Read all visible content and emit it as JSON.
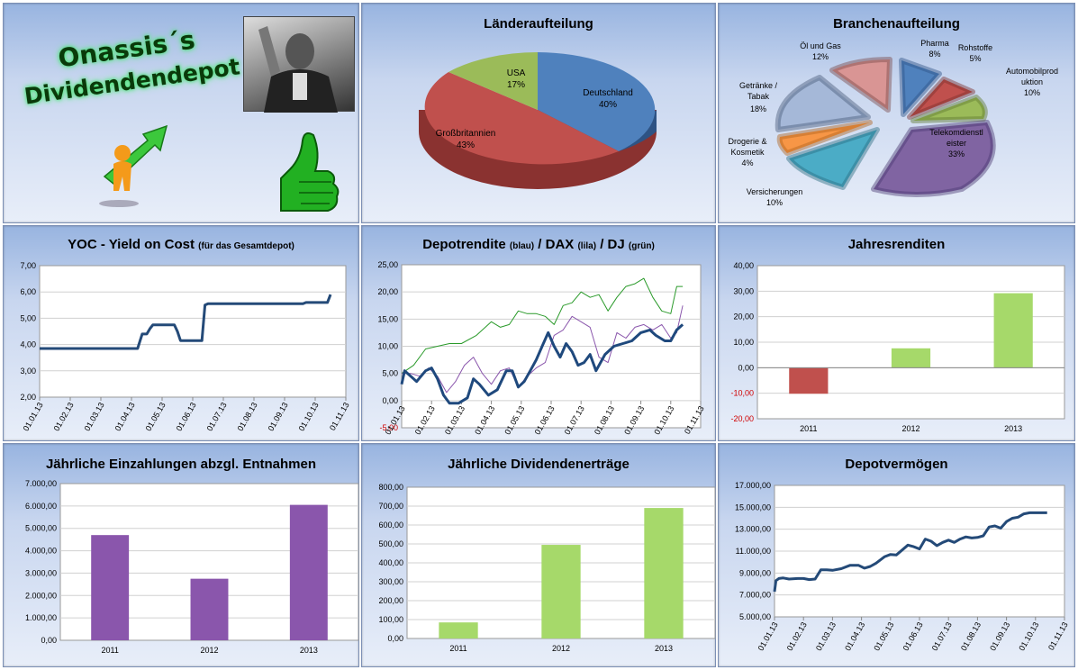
{
  "logo": {
    "line1": "Onassis´s",
    "line2": "Dividendendepot"
  },
  "colors": {
    "blue": "#4f81bd",
    "red": "#c0504d",
    "green": "#9bbb59",
    "purple": "#8064a2",
    "teal": "#4bacc6",
    "orange": "#f79646",
    "darkblue": "#1f497d",
    "navy": "#244a78",
    "lightgreen": "#a6d96a",
    "violet": "#8a56ac",
    "djgreen": "#2a9a2a"
  },
  "chart_data": [
    {
      "id": "laender",
      "type": "pie",
      "title": "Länderaufteilung",
      "labels": [
        "Deutschland",
        "Großbritannien",
        "USA"
      ],
      "values": [
        40,
        43,
        17
      ],
      "percent_labels": [
        "40%",
        "43%",
        "17%"
      ]
    },
    {
      "id": "branchen",
      "type": "pie",
      "title": "Branchenaufteilung",
      "labels": [
        "Pharma",
        "Rohstoffe",
        "Automobilproduktion",
        "Telekomdienstleister",
        "Versicherungen",
        "Drogerie & Kosmetik",
        "Getränke / Tabak",
        "Öl und Gas"
      ],
      "label_lines": [
        [
          "Pharma",
          "8%"
        ],
        [
          "Rohstoffe",
          "5%"
        ],
        [
          "Automobilprod",
          "uktion",
          "10%"
        ],
        [
          "Telekomdienstl",
          "eister",
          "33%"
        ],
        [
          "Versicherungen",
          "10%"
        ],
        [
          "Drogerie &",
          "Kosmetik",
          "4%"
        ],
        [
          "Getränke /",
          "Tabak",
          "18%"
        ],
        [
          "Öl und Gas",
          "12%"
        ]
      ],
      "values": [
        8,
        5,
        10,
        33,
        10,
        4,
        18,
        12
      ]
    },
    {
      "id": "yoc",
      "type": "line",
      "title": "YOC - Yield on Cost",
      "subtitle": "(für das Gesamtdepot)",
      "yticks": [
        "7,00",
        "6,00",
        "5,00",
        "4,00",
        "3,00",
        "2,00"
      ],
      "ylim": [
        2,
        7
      ],
      "xticks": [
        "01.01.13",
        "01.02.13",
        "01.03.13",
        "01.04.13",
        "01.05.13",
        "01.06.13",
        "01.07.13",
        "01.08.13",
        "01.09.13",
        "01.10.13",
        "01.11.13"
      ],
      "series": [
        {
          "name": "YOC",
          "x": [
            0,
            3.2,
            3.35,
            3.5,
            3.6,
            3.7,
            4.4,
            4.5,
            4.6,
            5.3,
            5.4,
            5.5,
            8.6,
            8.7,
            9.4,
            9.5
          ],
          "y": [
            3.85,
            3.85,
            4.4,
            4.4,
            4.6,
            4.75,
            4.75,
            4.5,
            4.15,
            4.15,
            5.5,
            5.55,
            5.55,
            5.6,
            5.6,
            5.9
          ]
        }
      ]
    },
    {
      "id": "depotrendite",
      "type": "line",
      "title": "Depotrendite",
      "title_parts": [
        "Depotrendite",
        "(blau)",
        "/ DAX",
        "(lila)",
        "/ DJ",
        "(grün)"
      ],
      "yticks": [
        "25,00",
        "20,00",
        "15,00",
        "10,00",
        "5,00",
        "0,00",
        "-5,00"
      ],
      "ylim": [
        -5,
        25
      ],
      "xticks": [
        "01.01.13",
        "01.02.13",
        "01.03.13",
        "01.04.13",
        "01.05.13",
        "01.06.13",
        "01.07.13",
        "01.08.13",
        "01.09.13",
        "01.10.13",
        "01.11.13"
      ],
      "series": [
        {
          "name": "Depotrendite",
          "x": [
            0,
            0.1,
            0.3,
            0.5,
            0.8,
            1.0,
            1.2,
            1.4,
            1.6,
            1.9,
            2.2,
            2.4,
            2.6,
            2.9,
            3.2,
            3.5,
            3.7,
            3.9,
            4.1,
            4.3,
            4.5,
            4.7,
            4.9,
            5.1,
            5.3,
            5.5,
            5.7,
            5.9,
            6.1,
            6.3,
            6.5,
            6.8,
            7.1,
            7.4,
            7.7,
            8.0,
            8.3,
            8.5,
            8.8,
            9.0,
            9.2,
            9.4
          ],
          "y": [
            3,
            5.5,
            4.5,
            3.5,
            5.5,
            6,
            4,
            1,
            -0.5,
            -0.5,
            0.5,
            4,
            3,
            1,
            2,
            5.5,
            5.5,
            2.5,
            3.5,
            5.5,
            7.5,
            10,
            12.5,
            10,
            8,
            10.5,
            9,
            6.5,
            7,
            8.5,
            5.5,
            8.5,
            10,
            10.5,
            11,
            12.5,
            13,
            12,
            11,
            11,
            13,
            14
          ]
        },
        {
          "name": "DAX",
          "x": [
            0,
            0.3,
            0.6,
            0.9,
            1.2,
            1.5,
            1.8,
            2.1,
            2.4,
            2.7,
            3.0,
            3.3,
            3.6,
            3.9,
            4.2,
            4.5,
            4.8,
            5.1,
            5.4,
            5.7,
            6.0,
            6.3,
            6.6,
            6.9,
            7.2,
            7.5,
            7.8,
            8.1,
            8.4,
            8.7,
            9.0,
            9.2,
            9.4
          ],
          "y": [
            5,
            5,
            4.5,
            6,
            4.5,
            1.5,
            3.5,
            6.5,
            8,
            5,
            3,
            5.5,
            6,
            2.5,
            4.5,
            6,
            7,
            12,
            13,
            15.5,
            14.5,
            13.5,
            8,
            7,
            12.5,
            11.5,
            13.5,
            14,
            13,
            14,
            11.5,
            12.5,
            17.5
          ]
        },
        {
          "name": "DJ",
          "x": [
            0,
            0.4,
            0.8,
            1.2,
            1.6,
            2.0,
            2.5,
            3.0,
            3.3,
            3.6,
            3.9,
            4.2,
            4.5,
            4.8,
            5.1,
            5.4,
            5.7,
            6.0,
            6.3,
            6.6,
            6.9,
            7.2,
            7.5,
            7.8,
            8.1,
            8.4,
            8.7,
            9.0,
            9.2,
            9.4
          ],
          "y": [
            5,
            6.5,
            9.5,
            10,
            10.5,
            10.5,
            12,
            14.5,
            13.5,
            14,
            16.5,
            16,
            16,
            15.5,
            14,
            17.5,
            18,
            20,
            19,
            19.5,
            16.5,
            19,
            21,
            21.5,
            22.5,
            19,
            16.5,
            16,
            21,
            21
          ]
        }
      ]
    },
    {
      "id": "jahresrenditen",
      "type": "bar",
      "title": "Jahresrenditen",
      "categories": [
        "2011",
        "2012",
        "2013"
      ],
      "values": [
        -10.2,
        7.6,
        29.2
      ],
      "bar_colors": [
        "#c0504d",
        "#a6d96a",
        "#a6d96a"
      ],
      "yticks": [
        "40,00",
        "30,00",
        "20,00",
        "10,00",
        "0,00",
        "-10,00",
        "-20,00"
      ],
      "ylim": [
        -20,
        40
      ]
    },
    {
      "id": "einzahlungen",
      "type": "bar",
      "title": "Jährliche Einzahlungen abzgl. Entnahmen",
      "categories": [
        "2011",
        "2012",
        "2013"
      ],
      "values": [
        4700,
        2750,
        6050
      ],
      "bar_colors": [
        "#8a56ac",
        "#8a56ac",
        "#8a56ac"
      ],
      "yticks": [
        "7.000,00",
        "6.000,00",
        "5.000,00",
        "4.000,00",
        "3.000,00",
        "2.000,00",
        "1.000,00",
        "0,00"
      ],
      "ylim": [
        0,
        7000
      ]
    },
    {
      "id": "dividenden",
      "type": "bar",
      "title": "Jährliche Dividendenerträge",
      "categories": [
        "2011",
        "2012",
        "2013"
      ],
      "values": [
        85,
        495,
        690
      ],
      "bar_colors": [
        "#a6d96a",
        "#a6d96a",
        "#a6d96a"
      ],
      "yticks": [
        "800,00",
        "700,00",
        "600,00",
        "500,00",
        "400,00",
        "300,00",
        "200,00",
        "100,00",
        "0,00"
      ],
      "ylim": [
        0,
        800
      ]
    },
    {
      "id": "depotvermoegen",
      "type": "line",
      "title": "Depotvermögen",
      "yticks": [
        "17.000,00",
        "15.000,00",
        "13.000,00",
        "11.000,00",
        "9.000,00",
        "7.000,00",
        "5.000,00"
      ],
      "ylim": [
        5000,
        17000
      ],
      "xticks": [
        "01.01.13",
        "01.02.13",
        "01.03.13",
        "01.04.13",
        "01.05.13",
        "01.06.13",
        "01.07.13",
        "01.08.13",
        "01.09.13",
        "01.10.13",
        "01.11.13"
      ],
      "series": [
        {
          "name": "Depotvermögen",
          "x": [
            0,
            0.05,
            0.15,
            0.3,
            0.5,
            0.8,
            1.0,
            1.2,
            1.4,
            1.6,
            1.8,
            2.0,
            2.3,
            2.6,
            2.9,
            3.1,
            3.3,
            3.5,
            3.8,
            4.0,
            4.2,
            4.4,
            4.6,
            4.8,
            5.0,
            5.2,
            5.4,
            5.6,
            5.8,
            6.0,
            6.2,
            6.4,
            6.6,
            6.8,
            7.0,
            7.2,
            7.4,
            7.6,
            7.8,
            8.0,
            8.2,
            8.4,
            8.6,
            8.8,
            9.0,
            9.2,
            9.4
          ],
          "y": [
            7300,
            8300,
            8500,
            8550,
            8450,
            8500,
            8500,
            8400,
            8450,
            9300,
            9300,
            9250,
            9400,
            9700,
            9700,
            9450,
            9600,
            9900,
            10500,
            10700,
            10650,
            11100,
            11550,
            11400,
            11200,
            12100,
            11900,
            11500,
            11800,
            12000,
            11800,
            12100,
            12300,
            12200,
            12250,
            12400,
            13200,
            13300,
            13100,
            13700,
            14000,
            14100,
            14400,
            14500,
            14500,
            14500,
            14500
          ]
        }
      ]
    }
  ]
}
